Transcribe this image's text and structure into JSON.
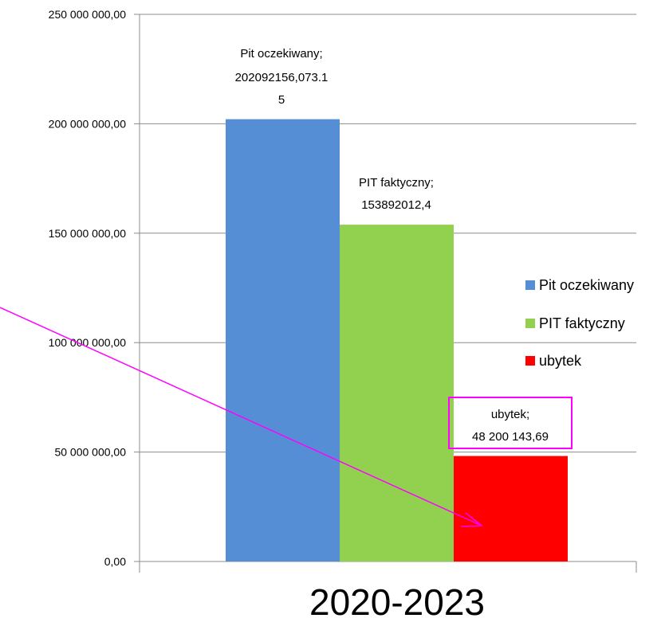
{
  "chart_data": {
    "type": "bar",
    "categories": [
      "2020-2023"
    ],
    "series": [
      {
        "name": "Pit oczekiwany",
        "values": [
          202092156.07315
        ],
        "color": "#558ED5",
        "data_label": [
          "Pit oczekiwany;",
          "202092156,073.1",
          "5"
        ]
      },
      {
        "name": "PIT faktyczny",
        "values": [
          153892012.4
        ],
        "color": "#92D050",
        "data_label": [
          "PIT faktyczny;",
          "153892012,4"
        ]
      },
      {
        "name": "ubytek",
        "values": [
          48200143.69
        ],
        "color": "#FF0000",
        "data_label": [
          "ubytek;",
          "48 200 143,69"
        ]
      }
    ],
    "y_ticks": [
      "0,00",
      "50 000 000,00",
      "100 000 000,00",
      "150 000 000,00",
      "200 000 000,00",
      "250 000 000,00"
    ],
    "ylim": [
      0,
      250000000
    ],
    "grid": true,
    "legend": "right",
    "annotation": {
      "type": "arrow",
      "color": "#FF00FF",
      "target": "ubytek",
      "highlight_label": "ubytek"
    }
  }
}
